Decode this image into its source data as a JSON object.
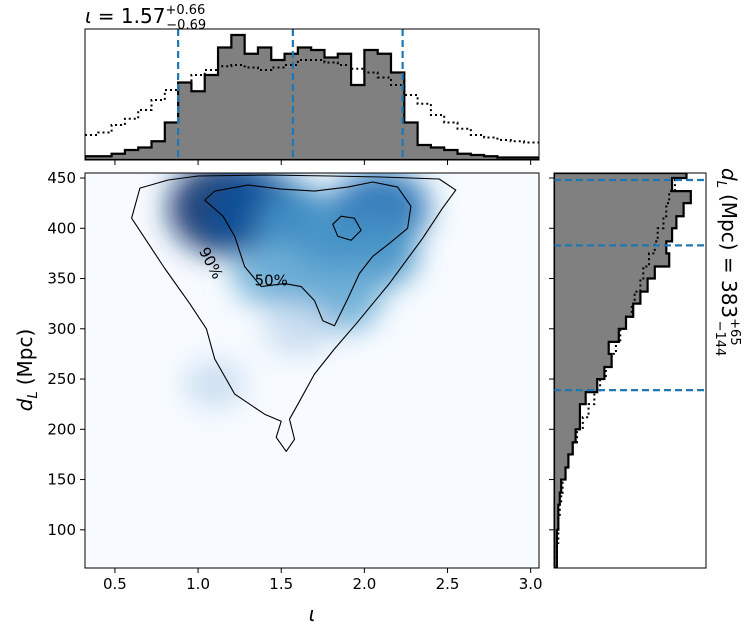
{
  "chart_data": [
    {
      "panel": "joint",
      "type": "heatmap",
      "xlabel": "ι",
      "ylabel_main": "d",
      "ylabel_sub": "L",
      "ylabel_unit": "(Mpc)",
      "xlim": [
        0.32,
        3.05
      ],
      "ylim": [
        62,
        455
      ],
      "xticks": [
        0.5,
        1.0,
        1.5,
        2.0,
        2.5,
        3.0
      ],
      "xtick_labels": [
        "0.5",
        "1.0",
        "1.5",
        "2.0",
        "2.5",
        "3.0"
      ],
      "yticks": [
        100,
        150,
        200,
        250,
        300,
        350,
        400,
        450
      ],
      "ytick_labels": [
        "100",
        "150",
        "200",
        "250",
        "300",
        "350",
        "400",
        "450"
      ],
      "colormap": "Blues",
      "density_peaks": [
        {
          "x": 1.18,
          "y": 420,
          "weight": 1.0
        },
        {
          "x": 1.38,
          "y": 415,
          "weight": 0.8
        },
        {
          "x": 1.62,
          "y": 405,
          "weight": 0.55
        },
        {
          "x": 2.1,
          "y": 420,
          "weight": 0.65
        },
        {
          "x": 2.05,
          "y": 375,
          "weight": 0.55
        },
        {
          "x": 1.7,
          "y": 360,
          "weight": 0.55
        },
        {
          "x": 1.85,
          "y": 330,
          "weight": 0.45
        },
        {
          "x": 1.45,
          "y": 355,
          "weight": 0.4
        },
        {
          "x": 1.6,
          "y": 300,
          "weight": 0.2
        },
        {
          "x": 1.1,
          "y": 245,
          "weight": 0.08
        }
      ],
      "contours": [
        {
          "label": "90%",
          "label_at": [
            1.05,
            363
          ],
          "points": [
            [
              0.82,
              448
            ],
            [
              1.0,
              452
            ],
            [
              1.4,
              453
            ],
            [
              1.8,
              452
            ],
            [
              2.1,
              451
            ],
            [
              2.45,
              449
            ],
            [
              2.55,
              438
            ],
            [
              2.47,
              420
            ],
            [
              2.35,
              390
            ],
            [
              2.15,
              345
            ],
            [
              1.95,
              305
            ],
            [
              1.82,
              280
            ],
            [
              1.7,
              255
            ],
            [
              1.6,
              225
            ],
            [
              1.55,
              210
            ],
            [
              1.58,
              190
            ],
            [
              1.53,
              178
            ],
            [
              1.47,
              192
            ],
            [
              1.5,
              208
            ],
            [
              1.4,
              215
            ],
            [
              1.22,
              235
            ],
            [
              1.1,
              270
            ],
            [
              1.05,
              300
            ],
            [
              0.95,
              325
            ],
            [
              0.8,
              360
            ],
            [
              0.6,
              410
            ],
            [
              0.65,
              440
            ],
            [
              0.82,
              448
            ]
          ]
        },
        {
          "label": "50%",
          "label_at": [
            1.44,
            343
          ],
          "points": [
            [
              1.04,
              428
            ],
            [
              1.1,
              437
            ],
            [
              1.3,
              443
            ],
            [
              1.5,
              439
            ],
            [
              1.7,
              437
            ],
            [
              1.9,
              441
            ],
            [
              2.05,
              446
            ],
            [
              2.2,
              441
            ],
            [
              2.28,
              422
            ],
            [
              2.26,
              400
            ],
            [
              2.15,
              385
            ],
            [
              2.05,
              372
            ],
            [
              1.97,
              355
            ],
            [
              1.9,
              330
            ],
            [
              1.82,
              303
            ],
            [
              1.75,
              308
            ],
            [
              1.7,
              328
            ],
            [
              1.62,
              342
            ],
            [
              1.52,
              345
            ],
            [
              1.38,
              342
            ],
            [
              1.28,
              362
            ],
            [
              1.22,
              392
            ],
            [
              1.15,
              412
            ],
            [
              1.04,
              428
            ]
          ],
          "hole": [
            [
              1.81,
              404
            ],
            [
              1.86,
              412
            ],
            [
              1.94,
              410
            ],
            [
              1.98,
              398
            ],
            [
              1.92,
              388
            ],
            [
              1.84,
              392
            ],
            [
              1.81,
              404
            ]
          ]
        }
      ]
    },
    {
      "panel": "top",
      "type": "bar",
      "title_sym": "ι",
      "title_eq": "= 1.57",
      "title_sup": "+0.66",
      "title_sub": "−0.69",
      "median": 1.57,
      "lower": 0.88,
      "upper": 2.23,
      "bins": [
        0.32,
        0.4,
        0.48,
        0.56,
        0.64,
        0.72,
        0.8,
        0.88,
        0.96,
        1.04,
        1.12,
        1.2,
        1.28,
        1.36,
        1.44,
        1.52,
        1.6,
        1.68,
        1.76,
        1.84,
        1.92,
        2.0,
        2.08,
        2.16,
        2.24,
        2.32,
        2.4,
        2.48,
        2.56,
        2.64,
        2.72,
        2.8,
        2.88,
        2.96,
        3.05
      ],
      "counts": [
        0.03,
        0.03,
        0.05,
        0.08,
        0.1,
        0.15,
        0.3,
        0.62,
        0.55,
        0.68,
        0.9,
        1.0,
        0.85,
        0.9,
        0.8,
        0.85,
        0.9,
        0.88,
        0.82,
        0.85,
        0.6,
        0.88,
        0.85,
        0.7,
        0.3,
        0.12,
        0.1,
        0.08,
        0.05,
        0.04,
        0.03,
        0.02,
        0.02,
        0.02
      ],
      "prior": [
        0.2,
        0.22,
        0.28,
        0.33,
        0.4,
        0.48,
        0.56,
        0.62,
        0.68,
        0.72,
        0.75,
        0.76,
        0.74,
        0.72,
        0.74,
        0.76,
        0.8,
        0.8,
        0.78,
        0.76,
        0.73,
        0.7,
        0.66,
        0.6,
        0.52,
        0.45,
        0.36,
        0.3,
        0.25,
        0.2,
        0.18,
        0.16,
        0.15,
        0.14
      ]
    },
    {
      "panel": "right",
      "type": "bar",
      "title_main": "d",
      "title_sub_L": "L",
      "title_unit": "(Mpc) = 383",
      "title_sup": "+65",
      "title_sub": "−144",
      "median": 383,
      "lower": 239,
      "upper": 448,
      "bins": [
        62,
        75,
        87,
        100,
        112,
        125,
        137,
        150,
        162,
        175,
        187,
        200,
        212,
        225,
        237,
        250,
        262,
        275,
        287,
        300,
        312,
        325,
        337,
        350,
        362,
        375,
        387,
        400,
        412,
        425,
        437,
        450,
        455
      ],
      "counts": [
        0.02,
        0.02,
        0.02,
        0.03,
        0.03,
        0.04,
        0.05,
        0.08,
        0.1,
        0.13,
        0.15,
        0.18,
        0.18,
        0.22,
        0.3,
        0.35,
        0.4,
        0.38,
        0.45,
        0.5,
        0.55,
        0.6,
        0.65,
        0.7,
        0.8,
        0.78,
        0.82,
        0.85,
        0.9,
        0.95,
        0.82,
        0.92
      ],
      "prior": [
        0.02,
        0.02,
        0.03,
        0.03,
        0.04,
        0.05,
        0.06,
        0.08,
        0.1,
        0.13,
        0.16,
        0.2,
        0.24,
        0.28,
        0.32,
        0.36,
        0.4,
        0.43,
        0.46,
        0.5,
        0.54,
        0.56,
        0.6,
        0.62,
        0.66,
        0.7,
        0.72,
        0.76,
        0.78,
        0.8,
        0.84,
        0.86
      ]
    }
  ]
}
